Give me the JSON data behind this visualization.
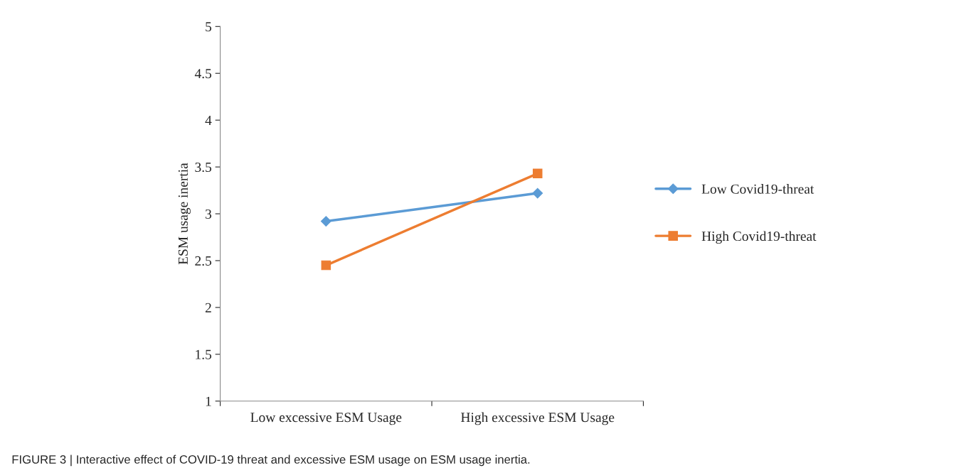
{
  "chart_data": {
    "type": "line",
    "ylabel": "ESM usage inertia",
    "categories": [
      "Low excessive ESM Usage",
      "High excessive ESM Usage"
    ],
    "series": [
      {
        "name": "Low Covid19-threat",
        "color": "#5b9bd5",
        "values": [
          2.92,
          3.22
        ],
        "marker": "diamond"
      },
      {
        "name": "High Covid19-threat",
        "color": "#ed7d31",
        "values": [
          2.45,
          3.43
        ],
        "marker": "square"
      }
    ],
    "ylim": [
      1,
      5
    ],
    "yticks": [
      1,
      1.5,
      2,
      2.5,
      3,
      3.5,
      4,
      4.5,
      5
    ],
    "grid": false,
    "legend": "right",
    "line_style": "solid",
    "annotations": [
      "FIGURE 3 | Interactive effect of COVID-19 threat and excessive ESM usage on ESM usage inertia."
    ]
  }
}
